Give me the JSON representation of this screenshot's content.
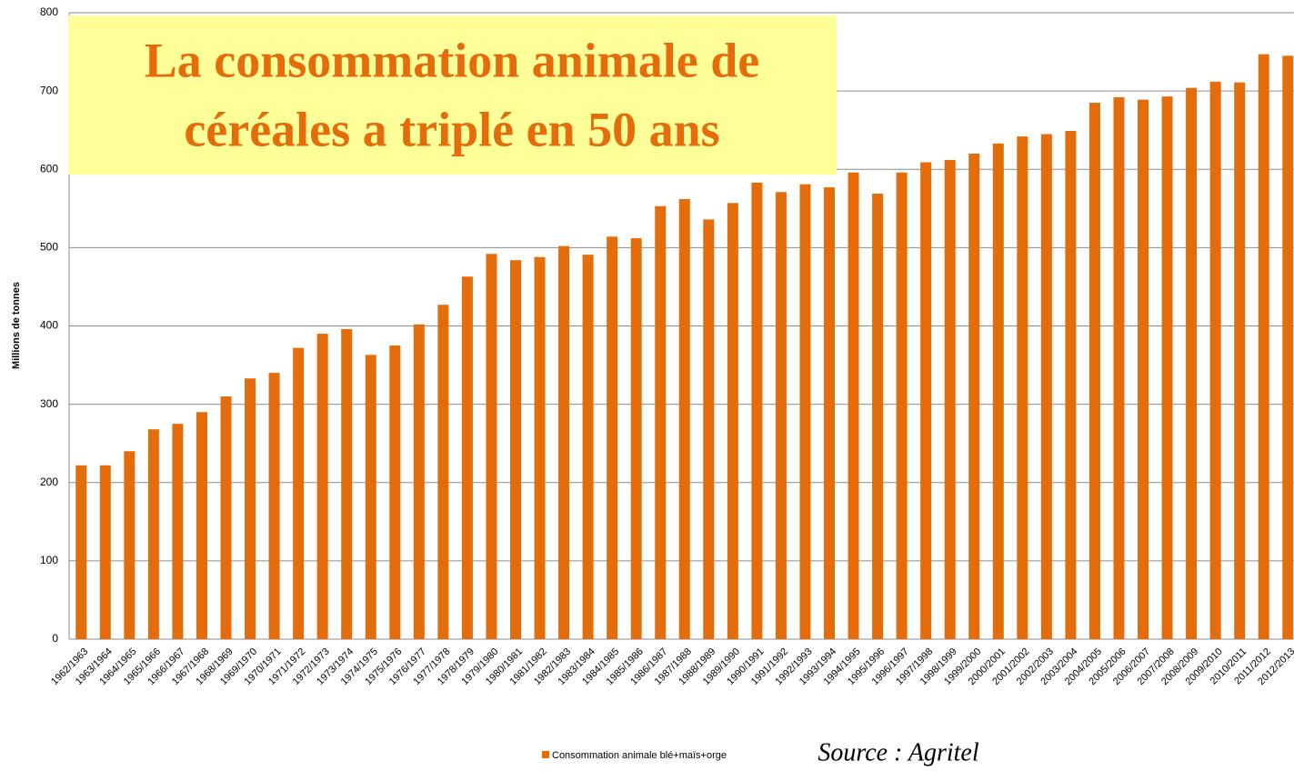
{
  "chart_data": {
    "type": "bar",
    "title": [
      "La consommation animale de",
      "céréales a triplé en 50 ans"
    ],
    "ylabel": "Millions de tonnes",
    "source": "Source : Agritel",
    "categories": [
      "1962/1963",
      "1963/1964",
      "1964/1965",
      "1965/1966",
      "1966/1967",
      "1967/1968",
      "1968/1969",
      "1969/1970",
      "1970/1971",
      "1971/1972",
      "1972/1973",
      "1973/1974",
      "1974/1975",
      "1975/1976",
      "1976/1977",
      "1977/1978",
      "1978/1979",
      "1979/1980",
      "1980/1981",
      "1981/1982",
      "1982/1983",
      "1983/1984",
      "1984/1985",
      "1985/1986",
      "1986/1987",
      "1987/1988",
      "1988/1989",
      "1989/1990",
      "1990/1991",
      "1991/1992",
      "1992/1993",
      "1993/1994",
      "1994/1995",
      "1995/1996",
      "1996/1997",
      "1997/1998",
      "1998/1999",
      "1999/2000",
      "2000/2001",
      "2001/2002",
      "2002/2003",
      "2003/2004",
      "2004/2005",
      "2005/2006",
      "2006/2007",
      "2007/2008",
      "2008/2009",
      "2009/2010",
      "2010/2011",
      "2011/2012",
      "2012/2013"
    ],
    "series": [
      {
        "name": "Consommation animale blé+maïs+orge",
        "color": "#e46c0a",
        "values": [
          222,
          222,
          240,
          268,
          275,
          290,
          310,
          333,
          340,
          372,
          390,
          396,
          363,
          375,
          402,
          427,
          463,
          492,
          484,
          488,
          502,
          491,
          514,
          512,
          553,
          562,
          536,
          557,
          583,
          571,
          581,
          577,
          596,
          569,
          596,
          609,
          612,
          620,
          633,
          642,
          645,
          649,
          685,
          692,
          689,
          693,
          704,
          712,
          711,
          747,
          745
        ]
      }
    ],
    "ylim": [
      0,
      800
    ],
    "yticks": [
      0,
      100,
      200,
      300,
      400,
      500,
      600,
      700,
      800
    ],
    "grid": true
  }
}
